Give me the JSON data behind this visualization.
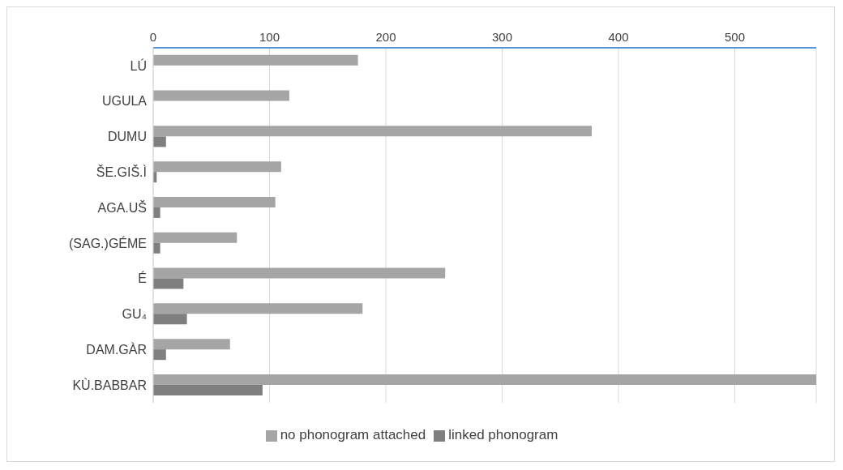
{
  "chart_data": {
    "type": "bar",
    "orientation": "horizontal",
    "categories": [
      "LÚ",
      "UGULA",
      "DUMU",
      "ŠE.GIŠ.Ì",
      "AGA.UŠ",
      "(SAG.)GÉME",
      "É",
      "GU₄",
      "DAM.GÀR",
      "KÙ.BABBAR"
    ],
    "series": [
      {
        "name": "no phonogram attached",
        "color": "#a5a5a5",
        "values": [
          176,
          117,
          377,
          110,
          105,
          72,
          251,
          180,
          66,
          570
        ]
      },
      {
        "name": "linked phonogram",
        "color": "#7f7f7f",
        "values": [
          null,
          null,
          11,
          3,
          6,
          6,
          26,
          29,
          11,
          94
        ]
      }
    ],
    "xlim": [
      0,
      570
    ],
    "xticks": [
      0,
      100,
      200,
      300,
      400,
      500
    ],
    "grid": "x",
    "legend": "bottom"
  }
}
